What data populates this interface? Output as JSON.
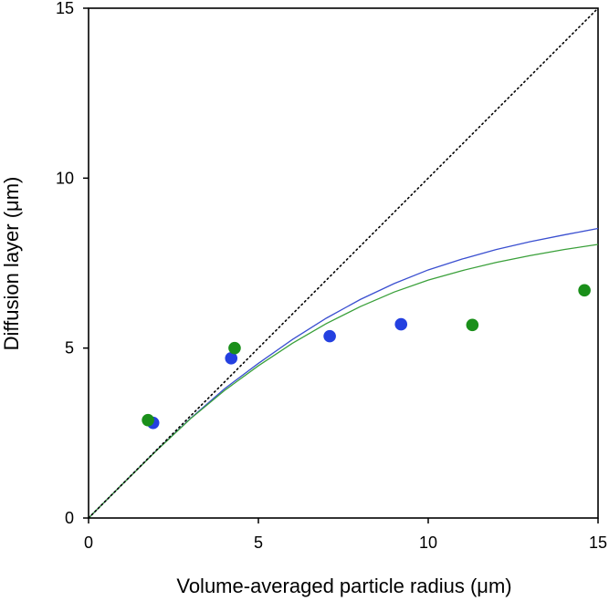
{
  "chart_data": {
    "type": "scatter",
    "title": "",
    "xlabel": "Volume-averaged particle radius (μm)",
    "ylabel": "Diffusion layer (μm)",
    "xlim": [
      0,
      15
    ],
    "ylim": [
      0,
      15
    ],
    "x_ticks": [
      "0",
      "5",
      "10",
      "15"
    ],
    "y_ticks": [
      "0",
      "5",
      "10",
      "15"
    ],
    "grid": false,
    "legend": "none",
    "series": [
      {
        "kind": "points",
        "color": "#2440e0",
        "points": [
          {
            "x": 1.9,
            "y": 2.8
          },
          {
            "x": 4.2,
            "y": 4.7
          },
          {
            "x": 7.1,
            "y": 5.35
          },
          {
            "x": 9.2,
            "y": 5.7
          }
        ]
      },
      {
        "kind": "points",
        "color": "#1a8f1a",
        "points": [
          {
            "x": 1.75,
            "y": 2.88
          },
          {
            "x": 4.3,
            "y": 5.0
          },
          {
            "x": 11.3,
            "y": 5.68
          },
          {
            "x": 14.6,
            "y": 6.7
          }
        ]
      },
      {
        "kind": "curve",
        "color": "#3a4fd0",
        "points": [
          {
            "x": 0,
            "y": 0
          },
          {
            "x": 1,
            "y": 1.0
          },
          {
            "x": 2,
            "y": 1.99
          },
          {
            "x": 3,
            "y": 2.93
          },
          {
            "x": 4,
            "y": 3.8
          },
          {
            "x": 5,
            "y": 4.55
          },
          {
            "x": 6,
            "y": 5.25
          },
          {
            "x": 7,
            "y": 5.88
          },
          {
            "x": 8,
            "y": 6.43
          },
          {
            "x": 9,
            "y": 6.9
          },
          {
            "x": 10,
            "y": 7.3
          },
          {
            "x": 11,
            "y": 7.62
          },
          {
            "x": 12,
            "y": 7.9
          },
          {
            "x": 13,
            "y": 8.13
          },
          {
            "x": 14,
            "y": 8.33
          },
          {
            "x": 15,
            "y": 8.52
          }
        ]
      },
      {
        "kind": "curve",
        "color": "#3aa03a",
        "points": [
          {
            "x": 0,
            "y": 0
          },
          {
            "x": 1,
            "y": 1.0
          },
          {
            "x": 2,
            "y": 1.98
          },
          {
            "x": 3,
            "y": 2.92
          },
          {
            "x": 4,
            "y": 3.75
          },
          {
            "x": 5,
            "y": 4.48
          },
          {
            "x": 6,
            "y": 5.14
          },
          {
            "x": 7,
            "y": 5.72
          },
          {
            "x": 8,
            "y": 6.22
          },
          {
            "x": 9,
            "y": 6.65
          },
          {
            "x": 10,
            "y": 7.0
          },
          {
            "x": 11,
            "y": 7.28
          },
          {
            "x": 12,
            "y": 7.52
          },
          {
            "x": 13,
            "y": 7.72
          },
          {
            "x": 14,
            "y": 7.9
          },
          {
            "x": 15,
            "y": 8.05
          }
        ]
      },
      {
        "kind": "reference-line",
        "style": "dotted",
        "color": "#000000",
        "points": [
          {
            "x": 0,
            "y": 0
          },
          {
            "x": 15,
            "y": 15
          }
        ]
      }
    ]
  }
}
